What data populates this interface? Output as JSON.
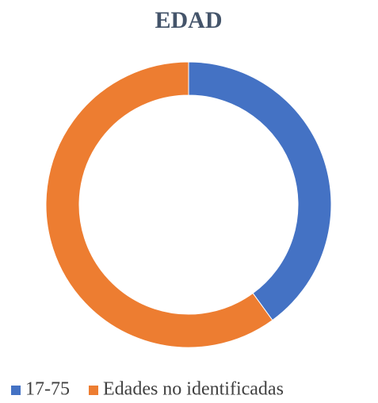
{
  "chart_data": {
    "type": "donut",
    "title": "EDAD",
    "categories": [
      "17-75",
      "Edades no identificadas"
    ],
    "values": [
      40,
      60
    ],
    "colors": [
      "#4472c4",
      "#ed7d31"
    ],
    "legend": "bottom"
  }
}
